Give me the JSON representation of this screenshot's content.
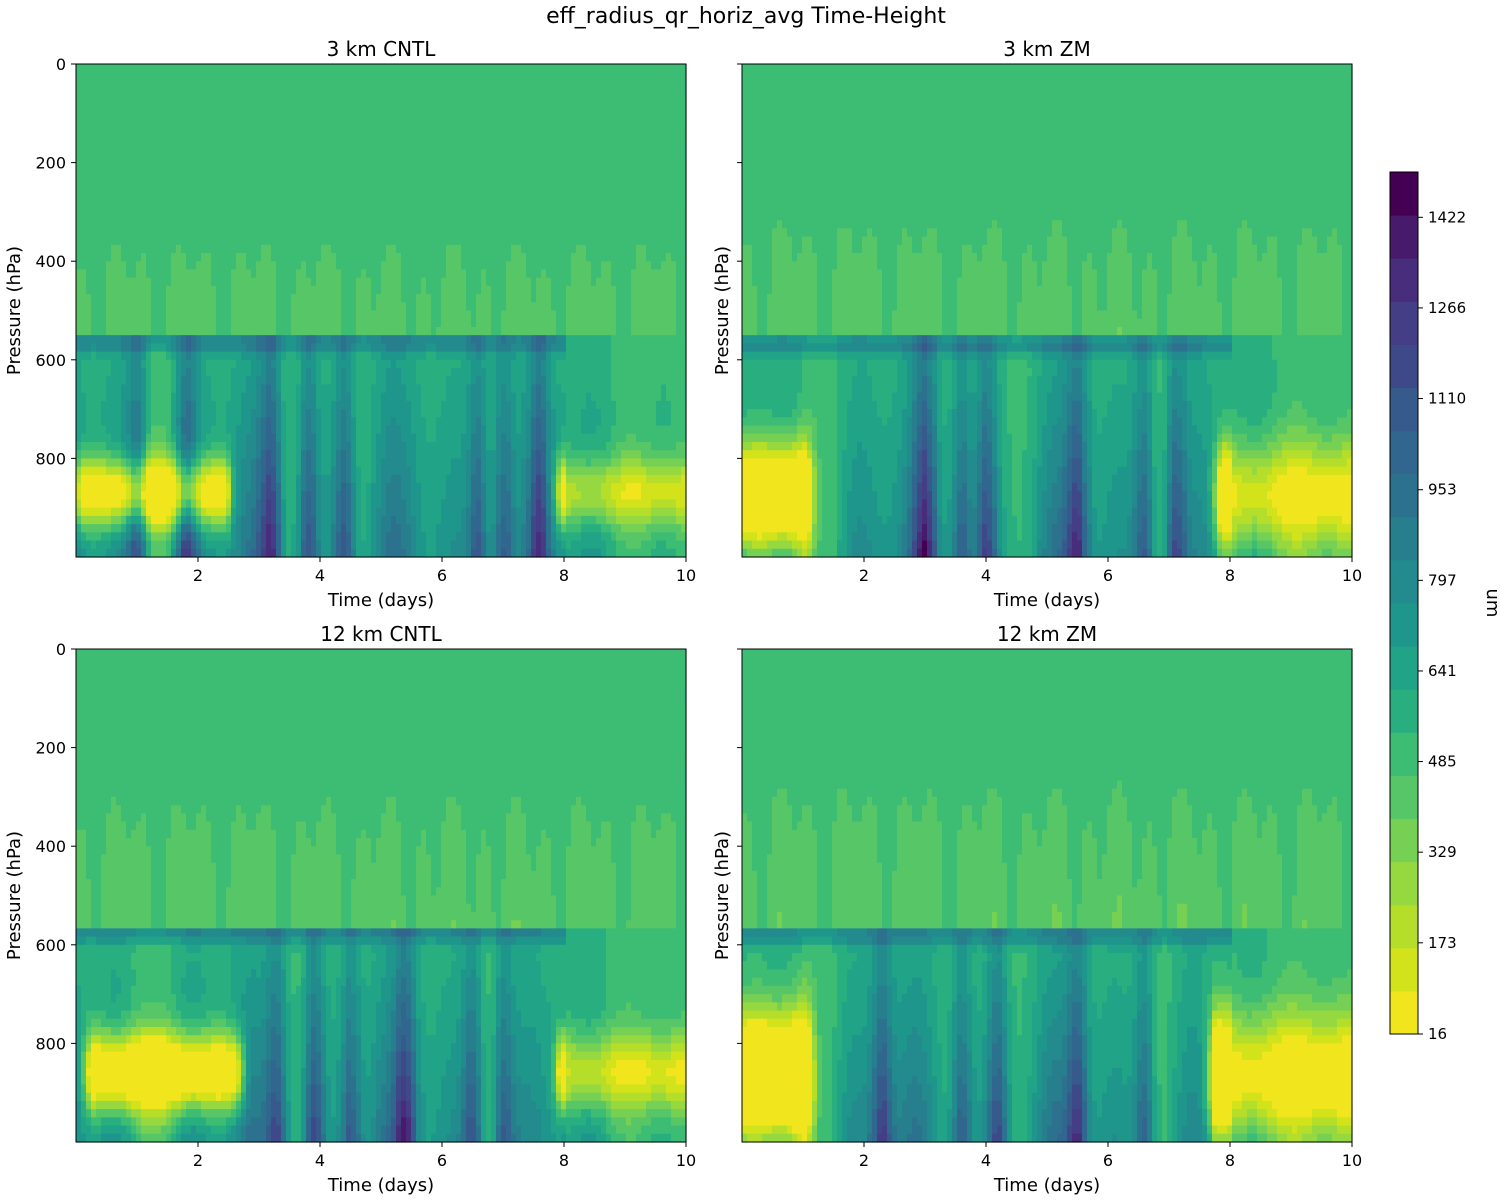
{
  "figure_title": "eff_radius_qr_horiz_avg Time-Height",
  "colorbar": {
    "label": "um",
    "tick_labels": [
      "16",
      "173",
      "329",
      "485",
      "641",
      "797",
      "953",
      "1110",
      "1266",
      "1422"
    ],
    "tick_values": [
      16,
      173,
      329,
      485,
      641,
      797,
      953,
      1110,
      1266,
      1422
    ],
    "range": [
      16,
      1500
    ],
    "levels": 19,
    "colors": [
      "#f1e51d",
      "#d2e21b",
      "#b5de2b",
      "#95d840",
      "#75d054",
      "#56c667",
      "#3dbc74",
      "#29af7f",
      "#20a386",
      "#1f968b",
      "#238a8d",
      "#277f8e",
      "#2c728e",
      "#31668e",
      "#375a8c",
      "#3e4989",
      "#433e85",
      "#472d7b",
      "#481a6c",
      "#440154"
    ]
  },
  "chart_data": [
    {
      "type": "heatmap",
      "title": "3 km CNTL",
      "xlabel": "Time (days)",
      "ylabel": "Pressure (hPa)",
      "xlim": [
        0,
        10
      ],
      "ylim": [
        1000,
        0
      ],
      "x_tick_labels": [
        "2",
        "4",
        "6",
        "8",
        "10"
      ],
      "x_ticks": [
        2,
        4,
        6,
        8,
        10
      ],
      "y_tick_labels": [
        "0",
        "200",
        "400",
        "600",
        "800"
      ],
      "y_ticks": [
        0,
        200,
        400,
        600,
        800
      ],
      "field": {
        "background_um": 485,
        "upper_top_hpa": 350,
        "layer_top_hpa": 550,
        "upper_intensity": 0.35,
        "mid_intensity": 0.85,
        "low_intensity": 1.0,
        "yellow_band": {
          "center_hpa": 870,
          "half_width_hpa": 70,
          "strength": 0.55,
          "day_ranges": [
            [
              0.1,
              2.4
            ],
            [
              8.0,
              10.0
            ]
          ]
        },
        "deep_columns_days": [
          1.0,
          1.8,
          3.2,
          3.8,
          4.4,
          6.6,
          7.0,
          7.6
        ]
      }
    },
    {
      "type": "heatmap",
      "title": "3 km ZM",
      "xlabel": "Time (days)",
      "ylabel": "Pressure (hPa)",
      "xlim": [
        0,
        10
      ],
      "ylim": [
        1000,
        0
      ],
      "x_tick_labels": [
        "2",
        "4",
        "6",
        "8",
        "10"
      ],
      "x_ticks": [
        2,
        4,
        6,
        8,
        10
      ],
      "y_tick_labels": [
        "0",
        "200",
        "400",
        "600",
        "800"
      ],
      "y_ticks": [
        0,
        200,
        400,
        600,
        800
      ],
      "field": {
        "background_um": 485,
        "upper_top_hpa": 300,
        "layer_top_hpa": 555,
        "upper_intensity": 0.4,
        "mid_intensity": 0.8,
        "low_intensity": 1.0,
        "yellow_band": {
          "center_hpa": 880,
          "half_width_hpa": 110,
          "strength": 0.7,
          "day_ranges": [
            [
              0.0,
              1.0
            ],
            [
              7.9,
              10.0
            ]
          ]
        },
        "deep_columns_days": [
          3.0,
          3.6,
          4.0,
          5.5,
          6.6,
          7.1
        ]
      }
    },
    {
      "type": "heatmap",
      "title": "12 km CNTL",
      "xlabel": "Time (days)",
      "ylabel": "Pressure (hPa)",
      "xlim": [
        0,
        10
      ],
      "ylim": [
        1000,
        0
      ],
      "x_tick_labels": [
        "2",
        "4",
        "6",
        "8",
        "10"
      ],
      "x_ticks": [
        2,
        4,
        6,
        8,
        10
      ],
      "y_tick_labels": [
        "0",
        "200",
        "400",
        "600",
        "800"
      ],
      "y_ticks": [
        0,
        200,
        400,
        600,
        800
      ],
      "field": {
        "background_um": 485,
        "upper_top_hpa": 280,
        "layer_top_hpa": 560,
        "upper_intensity": 0.4,
        "mid_intensity": 0.75,
        "low_intensity": 1.0,
        "yellow_band": {
          "center_hpa": 860,
          "half_width_hpa": 80,
          "strength": 0.6,
          "day_ranges": [
            [
              0.3,
              2.6
            ],
            [
              8.0,
              10.0
            ]
          ]
        },
        "deep_columns_days": [
          3.3,
          3.9,
          4.5,
          5.4,
          6.5,
          7.0
        ]
      }
    },
    {
      "type": "heatmap",
      "title": "12 km ZM",
      "xlabel": "Time (days)",
      "ylabel": "Pressure (hPa)",
      "xlim": [
        0,
        10
      ],
      "ylim": [
        1000,
        0
      ],
      "x_tick_labels": [
        "2",
        "4",
        "6",
        "8",
        "10"
      ],
      "x_ticks": [
        2,
        4,
        6,
        8,
        10
      ],
      "y_tick_labels": [
        "0",
        "200",
        "400",
        "600",
        "800"
      ],
      "y_ticks": [
        0,
        200,
        400,
        600,
        800
      ],
      "field": {
        "background_um": 485,
        "upper_top_hpa": 260,
        "layer_top_hpa": 565,
        "upper_intensity": 0.45,
        "mid_intensity": 0.75,
        "low_intensity": 1.0,
        "yellow_band": {
          "center_hpa": 870,
          "half_width_hpa": 130,
          "strength": 0.8,
          "day_ranges": [
            [
              0.0,
              1.0
            ],
            [
              7.8,
              10.0
            ]
          ]
        },
        "deep_columns_days": [
          2.3,
          3.6,
          4.2,
          5.5,
          6.6
        ]
      }
    }
  ]
}
